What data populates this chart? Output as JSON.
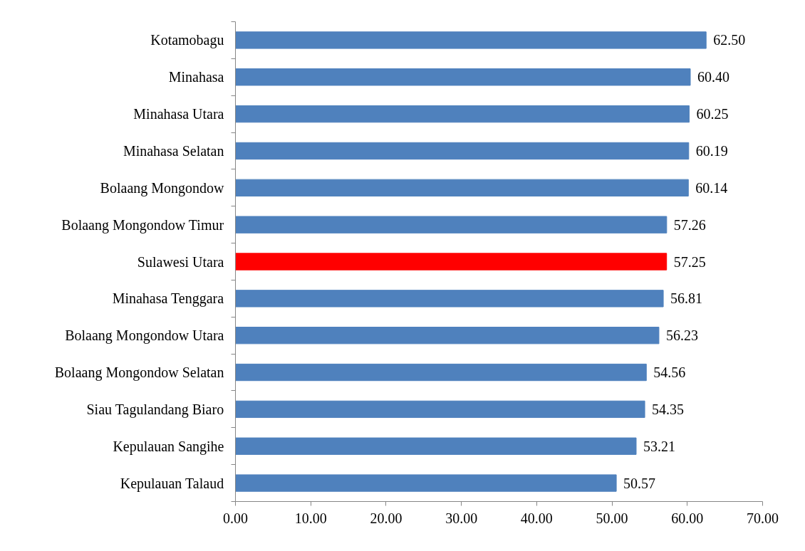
{
  "chart_data": {
    "type": "bar",
    "orientation": "horizontal",
    "categories": [
      "Kotamobagu",
      "Minahasa",
      "Minahasa Utara",
      "Minahasa Selatan",
      "Bolaang Mongondow",
      "Bolaang Mongondow Timur",
      "Sulawesi Utara",
      "Minahasa Tenggara",
      "Bolaang Mongondow Utara",
      "Bolaang Mongondow Selatan",
      "Siau Tagulandang Biaro",
      "Kepulauan Sangihe",
      "Kepulauan Talaud"
    ],
    "values": [
      62.5,
      60.4,
      60.25,
      60.19,
      60.14,
      57.26,
      57.25,
      56.81,
      56.23,
      54.56,
      54.35,
      53.21,
      50.57
    ],
    "value_labels": [
      "62.50",
      "60.40",
      "60.25",
      "60.19",
      "60.14",
      "57.26",
      "57.25",
      "56.81",
      "56.23",
      "54.56",
      "54.35",
      "53.21",
      "50.57"
    ],
    "colors": [
      "#4f81bd",
      "#4f81bd",
      "#4f81bd",
      "#4f81bd",
      "#4f81bd",
      "#4f81bd",
      "#ff0000",
      "#4f81bd",
      "#4f81bd",
      "#4f81bd",
      "#4f81bd",
      "#4f81bd",
      "#4f81bd"
    ],
    "xlim": [
      0,
      70
    ],
    "xticks": [
      {
        "value": 0,
        "label": "0.00"
      },
      {
        "value": 10,
        "label": "10.00"
      },
      {
        "value": 20,
        "label": "20.00"
      },
      {
        "value": 30,
        "label": "30.00"
      },
      {
        "value": 40,
        "label": "40.00"
      },
      {
        "value": 50,
        "label": "50.00"
      },
      {
        "value": 60,
        "label": "60.00"
      },
      {
        "value": 70,
        "label": "70.00"
      }
    ],
    "grid": false
  }
}
